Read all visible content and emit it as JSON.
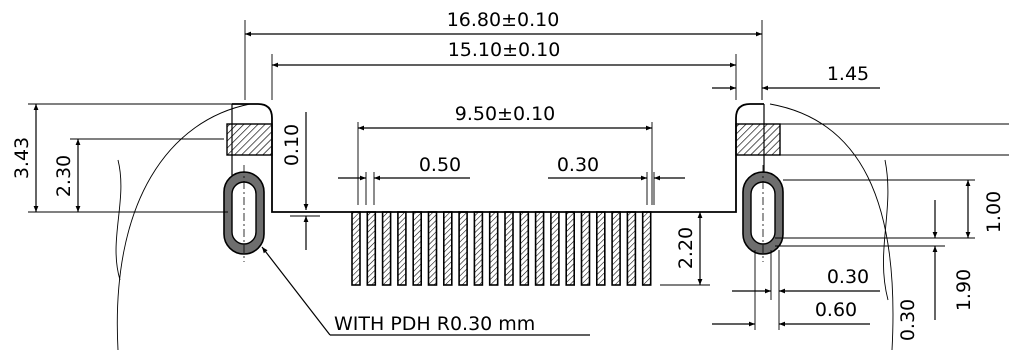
{
  "drawing": {
    "dimensions": {
      "overall_width": "16.80±0.10",
      "inner_width": "15.10±0.10",
      "pin_span": "9.50±0.10",
      "pitch": "0.50",
      "pin_width": "0.30",
      "side_offset": "1.45",
      "total_height": "3.43",
      "pad_height": "2.30",
      "body_gap": "0.10",
      "pin_length": "2.20",
      "slot_length": "1.00",
      "slot_offset": "1.90",
      "slot_width_a": "0.30",
      "slot_width_b": "0.60",
      "slot_radius": "0.30"
    },
    "note": "WITH PDH R0.30 mm"
  }
}
